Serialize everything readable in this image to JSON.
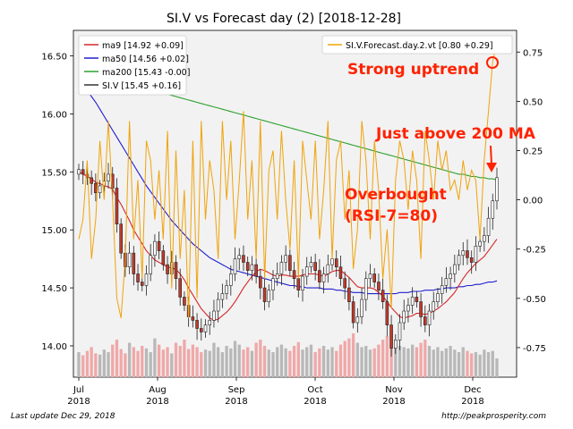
{
  "chart_data": {
    "type": "candlestick",
    "title": "SI.V vs Forecast day (2)  [2018-12-28]",
    "xlabel": "",
    "ylabel": "",
    "ylim": [
      13.73,
      16.72
    ],
    "y2lim": [
      -0.9,
      0.86
    ],
    "y_ticks": [
      "14.00",
      "14.50",
      "15.00",
      "15.50",
      "16.00",
      "16.50"
    ],
    "y2_ticks": [
      "-0.75",
      "-0.50",
      "-0.25",
      "0.00",
      "0.25",
      "0.50",
      "0.75"
    ],
    "x_ticks": [
      {
        "top": "Jul",
        "bottom": "2018"
      },
      {
        "top": "Aug",
        "bottom": "2018"
      },
      {
        "top": "Sep",
        "bottom": "2018"
      },
      {
        "top": "Oct",
        "bottom": "2018"
      },
      {
        "top": "Nov",
        "bottom": "2018"
      },
      {
        "top": "Dec",
        "bottom": "2018"
      }
    ],
    "legend": {
      "position": "top-left",
      "entries": [
        {
          "label": "ma9 [14.92 +0.09]",
          "color": "#d62728"
        },
        {
          "label": "ma50 [14.56 +0.02]",
          "color": "#1f1fd0"
        },
        {
          "label": "ma200 [15.43 -0.00]",
          "color": "#2ca02c"
        },
        {
          "label": "SI.V [15.45 +0.16]",
          "color": "#333333"
        }
      ]
    },
    "legend2": {
      "position": "top-right",
      "entries": [
        {
          "label": "SI.V.Forecast.day.2.vt [0.80 +0.29]",
          "color": "#f0a30a"
        }
      ]
    },
    "annotations": [
      {
        "text": "Strong uptrend",
        "color": "#ff2200"
      },
      {
        "text": "Just above 200 MA",
        "color": "#ff2200"
      },
      {
        "text": "Overbought",
        "color": "#ff2200"
      },
      {
        "text": "(RSI-7=80)",
        "color": "#ff2200"
      }
    ],
    "close": [
      15.52,
      15.48,
      15.45,
      15.4,
      15.32,
      15.38,
      15.42,
      15.48,
      15.36,
      15.05,
      14.8,
      14.68,
      14.8,
      14.62,
      14.55,
      14.52,
      14.62,
      14.78,
      14.9,
      14.82,
      14.7,
      14.62,
      14.72,
      14.58,
      14.42,
      14.35,
      14.25,
      14.22,
      14.15,
      14.12,
      14.18,
      14.22,
      14.3,
      14.4,
      14.45,
      14.52,
      14.62,
      14.75,
      14.78,
      14.72,
      14.65,
      14.7,
      14.6,
      14.5,
      14.38,
      14.48,
      14.58,
      14.62,
      14.72,
      14.78,
      14.65,
      14.58,
      14.48,
      14.6,
      14.68,
      14.72,
      14.65,
      14.55,
      14.62,
      14.7,
      14.75,
      14.68,
      14.58,
      14.5,
      14.38,
      14.2,
      14.25,
      14.4,
      14.58,
      14.62,
      14.55,
      14.48,
      14.38,
      14.18,
      13.98,
      14.05,
      14.2,
      14.3,
      14.35,
      14.42,
      14.38,
      14.25,
      14.18,
      14.3,
      14.38,
      14.45,
      14.52,
      14.58,
      14.62,
      14.7,
      14.78,
      14.82,
      14.76,
      14.72,
      14.86,
      14.9,
      14.95,
      15.1,
      15.25,
      15.45
    ],
    "ma9": [
      15.5,
      15.48,
      15.46,
      15.44,
      15.41,
      15.4,
      15.38,
      15.37,
      15.35,
      15.28,
      15.22,
      15.15,
      15.08,
      15.0,
      14.94,
      14.88,
      14.82,
      14.78,
      14.74,
      14.72,
      14.7,
      14.68,
      14.67,
      14.66,
      14.62,
      14.57,
      14.5,
      14.44,
      14.38,
      14.32,
      14.28,
      14.24,
      14.22,
      14.23,
      14.26,
      14.29,
      14.33,
      14.38,
      14.44,
      14.5,
      14.55,
      14.6,
      14.64,
      14.66,
      14.65,
      14.63,
      14.61,
      14.6,
      14.61,
      14.61,
      14.6,
      14.6,
      14.6,
      14.61,
      14.62,
      14.62,
      14.62,
      14.61,
      14.6,
      14.62,
      14.64,
      14.65,
      14.65,
      14.62,
      14.59,
      14.55,
      14.51,
      14.5,
      14.5,
      14.5,
      14.49,
      14.46,
      14.43,
      14.38,
      14.33,
      14.29,
      14.25,
      14.24,
      14.25,
      14.26,
      14.28,
      14.28,
      14.27,
      14.28,
      14.3,
      14.32,
      14.35,
      14.38,
      14.42,
      14.46,
      14.52,
      14.58,
      14.63,
      14.67,
      14.71,
      14.74,
      14.77,
      14.82,
      14.87,
      14.92
    ],
    "ma50": [
      16.3,
      16.25,
      16.2,
      16.15,
      16.1,
      16.04,
      15.98,
      15.92,
      15.86,
      15.8,
      15.74,
      15.68,
      15.62,
      15.56,
      15.5,
      15.44,
      15.38,
      15.33,
      15.28,
      15.23,
      15.18,
      15.13,
      15.08,
      15.04,
      15.0,
      14.96,
      14.92,
      14.88,
      14.85,
      14.82,
      14.79,
      14.76,
      14.74,
      14.72,
      14.7,
      14.68,
      14.66,
      14.65,
      14.64,
      14.63,
      14.62,
      14.61,
      14.6,
      14.59,
      14.58,
      14.57,
      14.56,
      14.55,
      14.54,
      14.53,
      14.52,
      14.52,
      14.51,
      14.51,
      14.5,
      14.5,
      14.5,
      14.5,
      14.49,
      14.49,
      14.49,
      14.48,
      14.48,
      14.47,
      14.47,
      14.46,
      14.46,
      14.46,
      14.45,
      14.45,
      14.45,
      14.45,
      14.45,
      14.45,
      14.45,
      14.45,
      14.46,
      14.46,
      14.46,
      14.47,
      14.47,
      14.47,
      14.48,
      14.48,
      14.48,
      14.49,
      14.49,
      14.5,
      14.5,
      14.5,
      14.51,
      14.51,
      14.52,
      14.52,
      14.53,
      14.53,
      14.54,
      14.55,
      14.55,
      14.56
    ],
    "ma200": [
      16.48,
      16.46,
      16.44,
      16.42,
      16.4,
      16.38,
      16.36,
      16.34,
      16.32,
      16.31,
      16.3,
      16.28,
      16.27,
      16.25,
      16.24,
      16.23,
      16.22,
      16.21,
      16.2,
      16.19,
      16.18,
      16.17,
      16.16,
      16.15,
      16.14,
      16.13,
      16.12,
      16.11,
      16.1,
      16.09,
      16.08,
      16.07,
      16.06,
      16.05,
      16.04,
      16.03,
      16.02,
      16.01,
      16.0,
      15.99,
      15.98,
      15.97,
      15.96,
      15.95,
      15.94,
      15.93,
      15.92,
      15.91,
      15.9,
      15.89,
      15.88,
      15.87,
      15.86,
      15.85,
      15.84,
      15.83,
      15.82,
      15.81,
      15.8,
      15.79,
      15.78,
      15.77,
      15.76,
      15.75,
      15.74,
      15.73,
      15.72,
      15.71,
      15.7,
      15.69,
      15.68,
      15.67,
      15.66,
      15.65,
      15.64,
      15.63,
      15.62,
      15.61,
      15.6,
      15.59,
      15.58,
      15.57,
      15.56,
      15.55,
      15.54,
      15.53,
      15.52,
      15.51,
      15.5,
      15.49,
      15.48,
      15.48,
      15.47,
      15.46,
      15.46,
      15.45,
      15.45,
      15.44,
      15.44,
      15.43
    ],
    "forecast": [
      -0.2,
      -0.1,
      0.2,
      -0.3,
      -0.1,
      0.3,
      0.0,
      0.4,
      0.0,
      -0.5,
      -0.6,
      -0.3,
      0.4,
      -0.2,
      0.1,
      -0.4,
      0.3,
      0.2,
      -0.1,
      0.15,
      -0.2,
      0.35,
      -0.45,
      0.25,
      -0.3,
      0.05,
      -0.6,
      0.3,
      -0.5,
      0.4,
      -0.1,
      0.2,
      0.05,
      -0.3,
      0.4,
      0.0,
      0.3,
      -0.2,
      0.1,
      0.45,
      -0.1,
      0.2,
      -0.3,
      0.4,
      -0.4,
      0.15,
      0.25,
      -0.1,
      0.35,
      0.0,
      -0.25,
      0.2,
      -0.4,
      0.3,
      0.1,
      -0.1,
      0.3,
      -0.2,
      0.05,
      0.4,
      -0.3,
      0.2,
      0.3,
      -0.1,
      0.15,
      -0.35,
      -0.15,
      0.4,
      0.2,
      -0.2,
      0.3,
      0.05,
      -0.4,
      -0.15,
      -0.55,
      0.1,
      0.3,
      0.2,
      -0.05,
      0.25,
      0.1,
      -0.3,
      0.35,
      0.2,
      0.0,
      0.3,
      0.15,
      0.25,
      0.05,
      0.1,
      0.0,
      0.2,
      0.05,
      0.15,
      0.1,
      -0.2,
      0.2,
      0.45,
      0.7,
      0.8
    ],
    "volume": [
      0.4,
      0.35,
      0.42,
      0.48,
      0.38,
      0.36,
      0.44,
      0.4,
      0.52,
      0.6,
      0.45,
      0.38,
      0.55,
      0.48,
      0.42,
      0.5,
      0.46,
      0.4,
      0.62,
      0.52,
      0.44,
      0.48,
      0.38,
      0.55,
      0.5,
      0.6,
      0.45,
      0.52,
      0.48,
      0.4,
      0.44,
      0.42,
      0.55,
      0.48,
      0.4,
      0.5,
      0.46,
      0.58,
      0.52,
      0.44,
      0.48,
      0.42,
      0.55,
      0.6,
      0.5,
      0.44,
      0.4,
      0.48,
      0.52,
      0.46,
      0.42,
      0.5,
      0.56,
      0.44,
      0.48,
      0.52,
      0.4,
      0.46,
      0.5,
      0.44,
      0.48,
      0.42,
      0.52,
      0.58,
      0.62,
      0.7,
      0.55,
      0.48,
      0.5,
      0.44,
      0.46,
      0.52,
      0.6,
      0.66,
      0.72,
      0.58,
      0.5,
      0.48,
      0.46,
      0.52,
      0.48,
      0.55,
      0.6,
      0.5,
      0.44,
      0.48,
      0.42,
      0.46,
      0.5,
      0.44,
      0.4,
      0.48,
      0.42,
      0.38,
      0.4,
      0.36,
      0.44,
      0.4,
      0.42,
      0.3
    ]
  },
  "footer": {
    "last_update": "Last update Dec 29, 2018",
    "source": "http://peakprosperity.com"
  }
}
